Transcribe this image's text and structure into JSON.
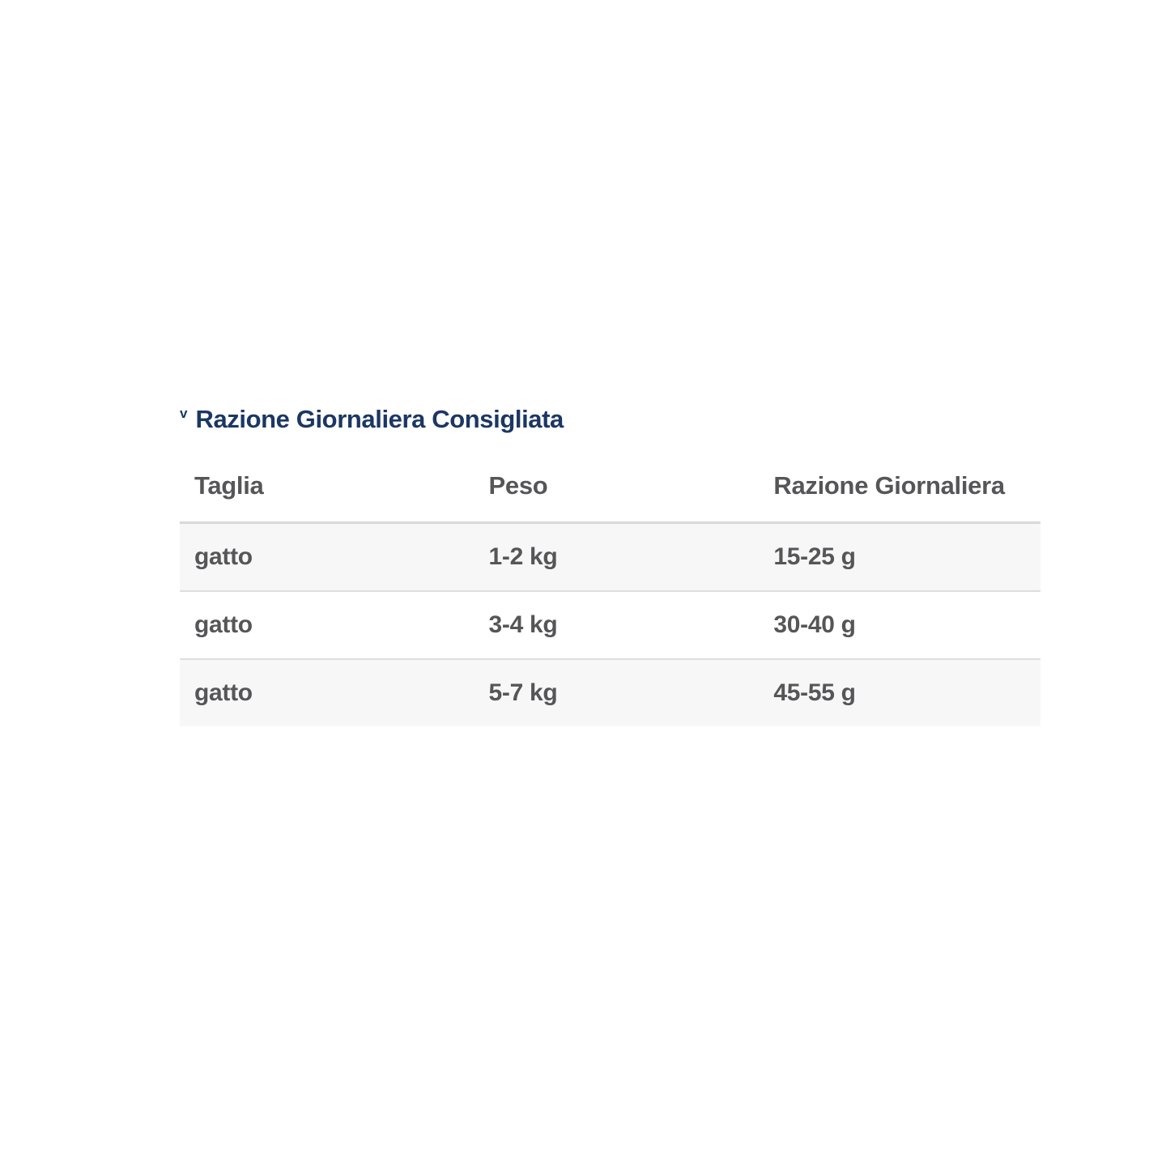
{
  "section": {
    "collapse_icon": "v",
    "title": "Razione Giornaliera Consigliata"
  },
  "table": {
    "headers": [
      "Taglia",
      "Peso",
      "Razione Giornaliera"
    ],
    "rows": [
      [
        "gatto",
        "1-2 kg",
        "15-25 g"
      ],
      [
        "gatto",
        "3-4 kg",
        "30-40 g"
      ],
      [
        "gatto",
        "5-7 kg",
        "45-55 g"
      ]
    ]
  },
  "colors": {
    "heading_text": "#1b3764",
    "table_text": "#565658",
    "row_alt_bg": "#f7f7f8",
    "row_border": "#dedede",
    "header_border": "#d9d9d9"
  }
}
